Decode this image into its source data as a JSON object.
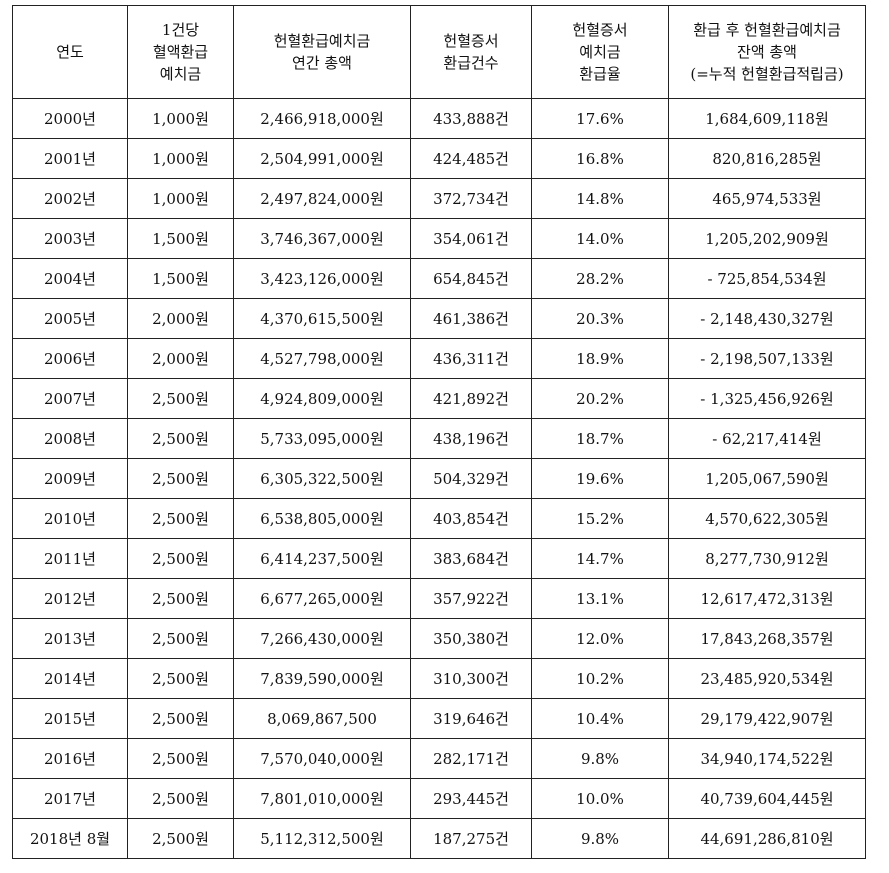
{
  "table": {
    "headers": [
      [
        "연도"
      ],
      [
        "1건당",
        "혈액환급",
        "예치금"
      ],
      [
        "헌혈환급예치금",
        "연간 총액"
      ],
      [
        "헌혈증서",
        "환급건수"
      ],
      [
        "헌혈증서",
        "예치금",
        "환급율"
      ],
      [
        "환급 후 헌혈환급예치금",
        "잔액 총액",
        "(=누적 헌혈환급적립금)"
      ]
    ],
    "rows": [
      [
        "2000년",
        "1,000원",
        "2,466,918,000원",
        "433,888건",
        "17.6%",
        "1,684,609,118원"
      ],
      [
        "2001년",
        "1,000원",
        "2,504,991,000원",
        "424,485건",
        "16.8%",
        "820,816,285원"
      ],
      [
        "2002년",
        "1,000원",
        "2,497,824,000원",
        "372,734건",
        "14.8%",
        "465,974,533원"
      ],
      [
        "2003년",
        "1,500원",
        "3,746,367,000원",
        "354,061건",
        "14.0%",
        "1,205,202,909원"
      ],
      [
        "2004년",
        "1,500원",
        "3,423,126,000원",
        "654,845건",
        "28.2%",
        "- 725,854,534원"
      ],
      [
        "2005년",
        "2,000원",
        "4,370,615,500원",
        "461,386건",
        "20.3%",
        "- 2,148,430,327원"
      ],
      [
        "2006년",
        "2,000원",
        "4,527,798,000원",
        "436,311건",
        "18.9%",
        "- 2,198,507,133원"
      ],
      [
        "2007년",
        "2,500원",
        "4,924,809,000원",
        "421,892건",
        "20.2%",
        "- 1,325,456,926원"
      ],
      [
        "2008년",
        "2,500원",
        "5,733,095,000원",
        "438,196건",
        "18.7%",
        "- 62,217,414원"
      ],
      [
        "2009년",
        "2,500원",
        "6,305,322,500원",
        "504,329건",
        "19.6%",
        "1,205,067,590원"
      ],
      [
        "2010년",
        "2,500원",
        "6,538,805,000원",
        "403,854건",
        "15.2%",
        "4,570,622,305원"
      ],
      [
        "2011년",
        "2,500원",
        "6,414,237,500원",
        "383,684건",
        "14.7%",
        "8,277,730,912원"
      ],
      [
        "2012년",
        "2,500원",
        "6,677,265,000원",
        "357,922건",
        "13.1%",
        "12,617,472,313원"
      ],
      [
        "2013년",
        "2,500원",
        "7,266,430,000원",
        "350,380건",
        "12.0%",
        "17,843,268,357원"
      ],
      [
        "2014년",
        "2,500원",
        "7,839,590,000원",
        "310,300건",
        "10.2%",
        "23,485,920,534원"
      ],
      [
        "2015년",
        "2,500원",
        "8,069,867,500",
        "319,646건",
        "10.4%",
        "29,179,422,907원"
      ],
      [
        "2016년",
        "2,500원",
        "7,570,040,000원",
        "282,171건",
        "9.8%",
        "34,940,174,522원"
      ],
      [
        "2017년",
        "2,500원",
        "7,801,010,000원",
        "293,445건",
        "10.0%",
        "40,739,604,445원"
      ],
      [
        "2018년 8월",
        "2,500원",
        "5,112,312,500원",
        "187,275건",
        "9.8%",
        "44,691,286,810원"
      ]
    ]
  }
}
